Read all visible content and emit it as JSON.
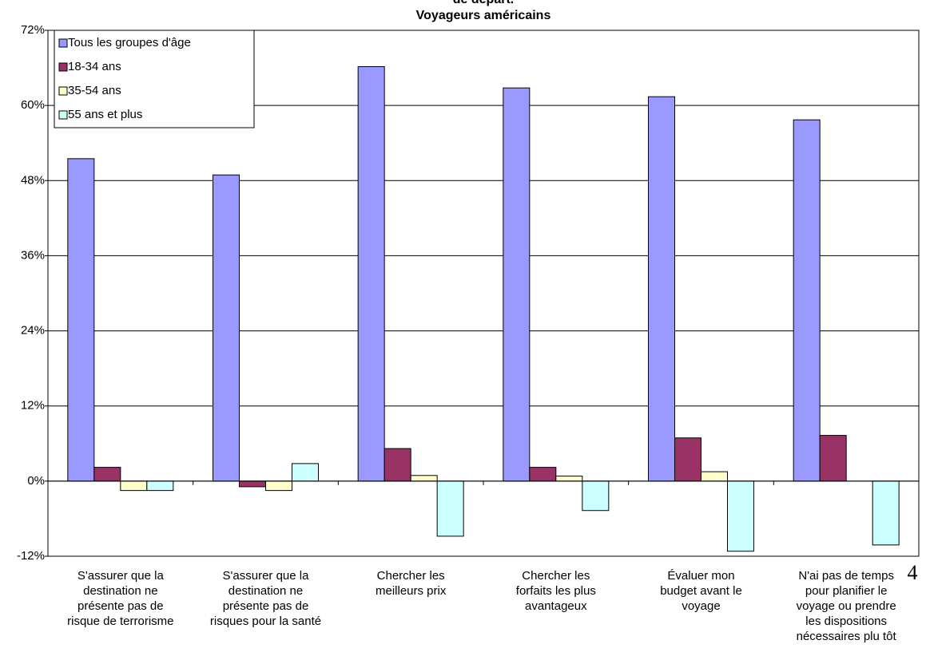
{
  "chart_data": {
    "type": "bar",
    "title_lines": [
      "de départ.",
      "Voyageurs américains"
    ],
    "categories": [
      [
        "S'assurer que la",
        "destination ne",
        "présente pas de",
        "risque de terrorisme"
      ],
      [
        "S'assurer que la",
        "destination ne",
        "présente pas de",
        "risques pour la santé"
      ],
      [
        "Chercher les",
        "meilleurs prix"
      ],
      [
        "Chercher les",
        "forfaits les plus",
        "avantageux"
      ],
      [
        "Évaluer mon",
        "budget avant le",
        "voyage"
      ],
      [
        "N'ai pas de temps",
        "pour planifier le",
        "voyage ou prendre",
        "les dispositions",
        "nécessaires plu tôt"
      ]
    ],
    "series": [
      {
        "name": "Tous les groupes d'âge",
        "color": "#9999ff",
        "values": [
          51.5,
          48.9,
          66.2,
          62.8,
          61.4,
          57.7
        ]
      },
      {
        "name": "18-34 ans",
        "color": "#993366",
        "values": [
          2.2,
          -0.9,
          5.2,
          2.2,
          6.9,
          7.3
        ]
      },
      {
        "name": "35-54 ans",
        "color": "#ffffcc",
        "values": [
          -1.5,
          -1.5,
          0.9,
          0.8,
          1.5,
          0
        ]
      },
      {
        "name": "55 ans et plus",
        "color": "#ccffff",
        "values": [
          -1.5,
          2.8,
          -8.8,
          -4.7,
          -11.2,
          -10.2
        ]
      }
    ],
    "ylim": [
      -12,
      72
    ],
    "yticks": [
      {
        "value": -12,
        "label": "-12%"
      },
      {
        "value": 0,
        "label": "0%"
      },
      {
        "value": 12,
        "label": "12%"
      },
      {
        "value": 24,
        "label": "24%"
      },
      {
        "value": 36,
        "label": "36%"
      },
      {
        "value": 48,
        "label": "48%"
      },
      {
        "value": 60,
        "label": "60%"
      },
      {
        "value": 72,
        "label": "72%"
      }
    ],
    "grid": true,
    "legend_position": "upper-left",
    "page_number": "4"
  }
}
